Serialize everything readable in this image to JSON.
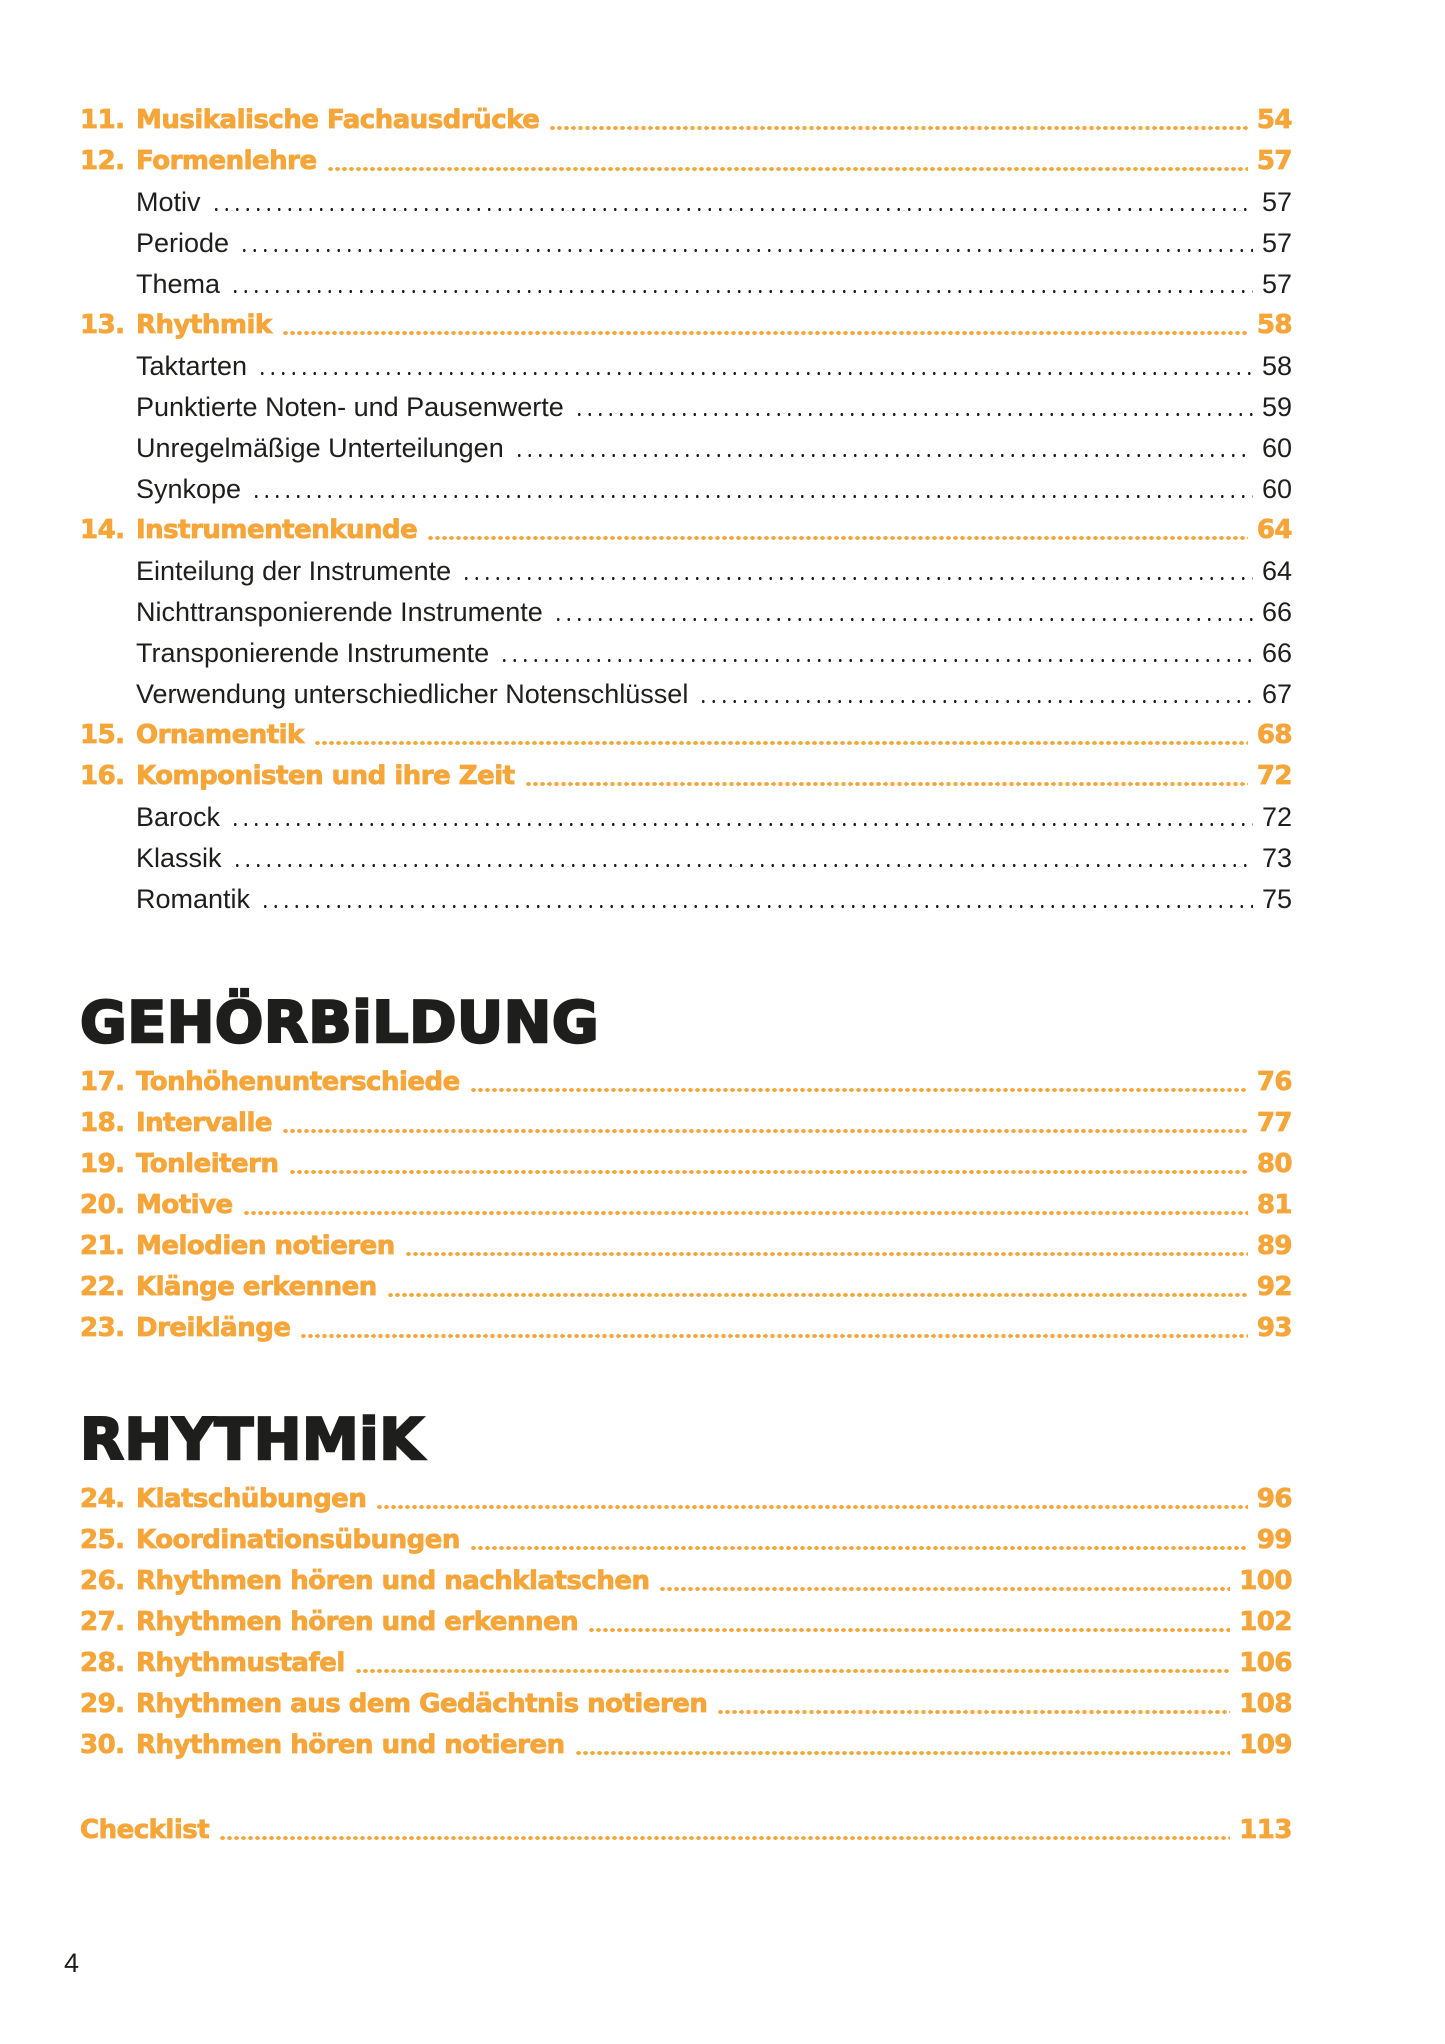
{
  "accent_color": "#f6a539",
  "text_color": "#1e1e1c",
  "footer": {
    "page_number": "4"
  },
  "toc": {
    "sections": [
      {
        "header": null,
        "entries": [
          {
            "num": "11.",
            "title": "Musikalische Fachausdrücke",
            "page": "54",
            "level": "chapter"
          },
          {
            "num": "12.",
            "title": "Formenlehre",
            "page": "57",
            "level": "chapter"
          },
          {
            "num": "",
            "title": "Motiv",
            "page": "57",
            "level": "sub"
          },
          {
            "num": "",
            "title": "Periode",
            "page": "57",
            "level": "sub"
          },
          {
            "num": "",
            "title": "Thema",
            "page": "57",
            "level": "sub"
          },
          {
            "num": "13.",
            "title": "Rhythmik",
            "page": "58",
            "level": "chapter"
          },
          {
            "num": "",
            "title": "Taktarten",
            "page": "58",
            "level": "sub"
          },
          {
            "num": "",
            "title": "Punktierte Noten- und Pausenwerte",
            "page": "59",
            "level": "sub"
          },
          {
            "num": "",
            "title": "Unregelmäßige Unterteilungen",
            "page": "60",
            "level": "sub"
          },
          {
            "num": "",
            "title": "Synkope",
            "page": "60",
            "level": "sub"
          },
          {
            "num": "14.",
            "title": "Instrumentenkunde",
            "page": "64",
            "level": "chapter"
          },
          {
            "num": "",
            "title": "Einteilung der Instrumente",
            "page": "64",
            "level": "sub"
          },
          {
            "num": "",
            "title": "Nichttransponierende Instrumente",
            "page": "66",
            "level": "sub"
          },
          {
            "num": "",
            "title": "Transponierende Instrumente",
            "page": "66",
            "level": "sub"
          },
          {
            "num": "",
            "title": "Verwendung unterschiedlicher Notenschlüssel",
            "page": "67",
            "level": "sub"
          },
          {
            "num": "15.",
            "title": "Ornamentik",
            "page": "68",
            "level": "chapter"
          },
          {
            "num": "16.",
            "title": "Komponisten und ihre Zeit",
            "page": "72",
            "level": "chapter"
          },
          {
            "num": "",
            "title": "Barock",
            "page": "72",
            "level": "sub"
          },
          {
            "num": "",
            "title": "Klassik",
            "page": "73",
            "level": "sub"
          },
          {
            "num": "",
            "title": "Romantik",
            "page": "75",
            "level": "sub"
          }
        ]
      },
      {
        "header": "GEHÖRBiLDUNG",
        "entries": [
          {
            "num": "17.",
            "title": "Tonhöhenunterschiede",
            "page": "76",
            "level": "chapter"
          },
          {
            "num": "18.",
            "title": "Intervalle",
            "page": "77",
            "level": "chapter"
          },
          {
            "num": "19.",
            "title": "Tonleitern",
            "page": "80",
            "level": "chapter"
          },
          {
            "num": "20.",
            "title": "Motive",
            "page": "81",
            "level": "chapter"
          },
          {
            "num": "21.",
            "title": "Melodien notieren",
            "page": "89",
            "level": "chapter"
          },
          {
            "num": "22.",
            "title": "Klänge erkennen",
            "page": "92",
            "level": "chapter"
          },
          {
            "num": "23.",
            "title": "Dreiklänge",
            "page": "93",
            "level": "chapter"
          }
        ]
      },
      {
        "header": "RHYTHMiK",
        "entries": [
          {
            "num": "24.",
            "title": "Klatschübungen",
            "page": "96",
            "level": "chapter"
          },
          {
            "num": "25.",
            "title": "Koordinationsübungen",
            "page": "99",
            "level": "chapter"
          },
          {
            "num": "26.",
            "title": "Rhythmen hören und nachklatschen",
            "page": "100",
            "level": "chapter"
          },
          {
            "num": "27.",
            "title": "Rhythmen hören und erkennen",
            "page": "102",
            "level": "chapter"
          },
          {
            "num": "28.",
            "title": "Rhythmustafel",
            "page": "106",
            "level": "chapter"
          },
          {
            "num": "29.",
            "title": "Rhythmen aus dem Gedächtnis notieren",
            "page": "108",
            "level": "chapter"
          },
          {
            "num": "30.",
            "title": "Rhythmen hören und notieren",
            "page": "109",
            "level": "chapter"
          }
        ]
      },
      {
        "header": null,
        "entries": [
          {
            "num": "",
            "title": "Checklist",
            "page": "113",
            "level": "chapter"
          }
        ]
      }
    ]
  }
}
